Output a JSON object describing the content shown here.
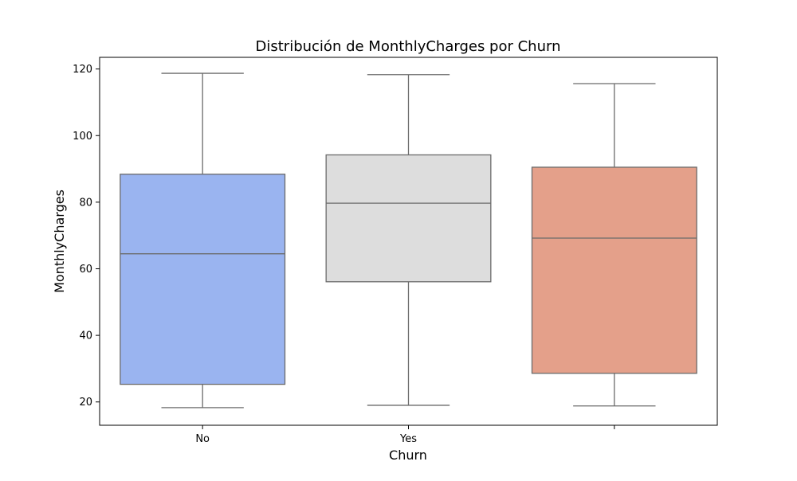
{
  "chart_data": {
    "type": "box",
    "title": "Distribución de MonthlyCharges por Churn",
    "xlabel": "Churn",
    "ylabel": "MonthlyCharges",
    "ylim": [
      13,
      123.5
    ],
    "yticks": [
      20,
      40,
      60,
      80,
      100,
      120
    ],
    "grid": false,
    "legend": "none",
    "categories": [
      "No",
      "Yes",
      ""
    ],
    "boxes": [
      {
        "category": "No",
        "whisker_low": 18.3,
        "q1": 25.3,
        "median": 64.5,
        "q3": 88.4,
        "whisker_high": 118.7,
        "color": "#9ab4f0"
      },
      {
        "category": "Yes",
        "whisker_low": 19.0,
        "q1": 56.1,
        "median": 79.7,
        "q3": 94.2,
        "whisker_high": 118.3,
        "color": "#dddddd"
      },
      {
        "category": "",
        "whisker_low": 18.8,
        "q1": 28.6,
        "median": 69.2,
        "q3": 90.5,
        "whisker_high": 115.6,
        "color": "#e4a08a"
      }
    ]
  }
}
